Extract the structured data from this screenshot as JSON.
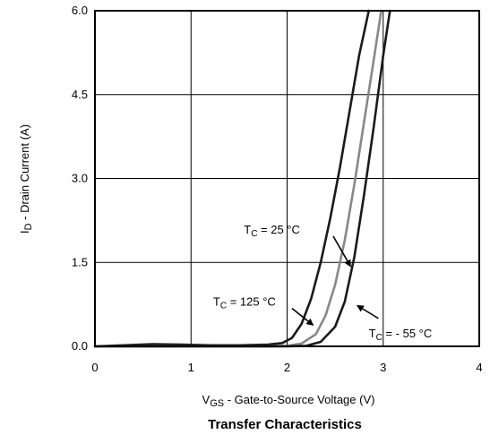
{
  "chart_data": {
    "type": "line",
    "title": "Transfer Characteristics",
    "xlabel": {
      "pre": "V",
      "sub": "GS",
      "post": " - Gate-to-Source Voltage (V)"
    },
    "ylabel": {
      "pre": "I",
      "sub": "D",
      "post": " - Drain Current (A)"
    },
    "xlim": [
      0,
      4
    ],
    "ylim": [
      0,
      6.0
    ],
    "x_ticks": [
      0,
      1,
      2,
      3,
      4
    ],
    "x_tick_labels": [
      "0",
      "1",
      "2",
      "3",
      "4"
    ],
    "y_ticks": [
      0,
      1.5,
      3.0,
      4.5,
      6.0
    ],
    "y_tick_labels": [
      "0.0",
      "1.5",
      "3.0",
      "4.5",
      "6.0"
    ],
    "grid": true,
    "series": [
      {
        "name": {
          "pre": "T",
          "sub": "C",
          "post": " = 125 °C"
        },
        "color": "#1a1a1a",
        "x": [
          0.0,
          0.3,
          0.6,
          0.9,
          1.2,
          1.5,
          1.8,
          1.95,
          2.05,
          2.15,
          2.25,
          2.35,
          2.45,
          2.55,
          2.65,
          2.75,
          2.85
        ],
        "y": [
          0.0,
          0.02,
          0.04,
          0.03,
          0.02,
          0.02,
          0.03,
          0.06,
          0.15,
          0.4,
          0.85,
          1.5,
          2.3,
          3.2,
          4.2,
          5.2,
          6.0
        ]
      },
      {
        "name": {
          "pre": "T",
          "sub": "C",
          "post": " = 25 °C"
        },
        "color": "#888888",
        "x": [
          0.0,
          1.0,
          1.8,
          2.0,
          2.15,
          2.3,
          2.4,
          2.5,
          2.6,
          2.7,
          2.8,
          2.9,
          2.98
        ],
        "y": [
          0.0,
          0.0,
          0.0,
          0.01,
          0.05,
          0.22,
          0.55,
          1.1,
          1.9,
          2.9,
          4.0,
          5.1,
          6.0
        ]
      },
      {
        "name": {
          "pre": "T",
          "sub": "C",
          "post": " = - 55 °C"
        },
        "color": "#1a1a1a",
        "x": [
          0.0,
          1.0,
          2.0,
          2.2,
          2.35,
          2.5,
          2.6,
          2.7,
          2.8,
          2.9,
          3.0,
          3.07
        ],
        "y": [
          0.0,
          0.0,
          0.0,
          0.01,
          0.08,
          0.35,
          0.8,
          1.6,
          2.7,
          3.9,
          5.2,
          6.0
        ]
      }
    ],
    "annotations": [
      {
        "series": 0,
        "label_at": [
          1.23,
          0.73
        ],
        "arrow_from": [
          2.05,
          0.68
        ],
        "arrow_to": [
          2.27,
          0.38
        ]
      },
      {
        "series": 1,
        "label_at": [
          1.55,
          2.02
        ],
        "arrow_from": [
          2.48,
          1.97
        ],
        "arrow_to": [
          2.66,
          1.43
        ]
      },
      {
        "series": 2,
        "label_at": [
          2.85,
          0.16
        ],
        "arrow_from": [
          2.95,
          0.5
        ],
        "arrow_to": [
          2.73,
          0.73
        ]
      }
    ]
  }
}
